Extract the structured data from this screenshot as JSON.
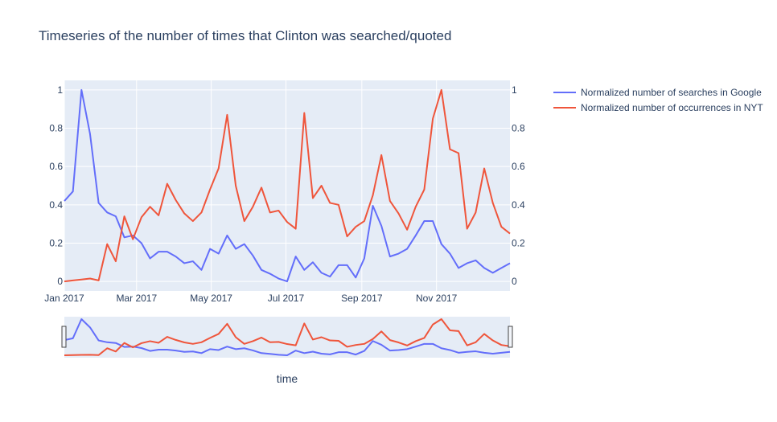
{
  "chart_data": {
    "type": "line",
    "title": "Timeseries of the number of times that Clinton was searched/quoted",
    "xlabel": "time",
    "ylabel": "",
    "x_start": "2017-01-01",
    "x_step_days": 7,
    "x_tick_labels": [
      {
        "date": "2017-01-01",
        "label": "Jan 2017"
      },
      {
        "date": "2017-03-01",
        "label": "Mar 2017"
      },
      {
        "date": "2017-05-01",
        "label": "May 2017"
      },
      {
        "date": "2017-07-01",
        "label": "Jul 2017"
      },
      {
        "date": "2017-09-01",
        "label": "Sep 2017"
      },
      {
        "date": "2017-11-01",
        "label": "Nov 2017"
      }
    ],
    "xlim": [
      "2017-01-01",
      "2017-12-31"
    ],
    "ylim": [
      -0.05,
      1.05
    ],
    "y_ticks": [
      {
        "value": 0,
        "label": "0"
      },
      {
        "value": 0.2,
        "label": "0.2"
      },
      {
        "value": 0.4,
        "label": "0.4"
      },
      {
        "value": 0.6,
        "label": "0.6"
      },
      {
        "value": 0.8,
        "label": "0.8"
      },
      {
        "value": 1,
        "label": "1"
      }
    ],
    "grid": true,
    "legend_position": "top-right",
    "has_range_slider": true,
    "colors": {
      "background": "#E5ECF6",
      "grid": "#FFFFFF",
      "text": "#2A3F5F",
      "google": "#636EFA",
      "nyt": "#EF553B"
    },
    "series": [
      {
        "name": "Normalized number of searches in Google",
        "color": "#636EFA",
        "values": [
          0.42,
          0.47,
          1.0,
          0.77,
          0.41,
          0.36,
          0.34,
          0.23,
          0.24,
          0.2,
          0.12,
          0.155,
          0.155,
          0.13,
          0.095,
          0.105,
          0.06,
          0.17,
          0.145,
          0.24,
          0.17,
          0.195,
          0.135,
          0.06,
          0.04,
          0.015,
          0.0,
          0.13,
          0.06,
          0.1,
          0.045,
          0.025,
          0.085,
          0.085,
          0.02,
          0.12,
          0.395,
          0.29,
          0.13,
          0.145,
          0.17,
          0.24,
          0.315,
          0.315,
          0.195,
          0.145,
          0.07,
          0.095,
          0.11,
          0.07,
          0.045,
          0.07,
          0.095
        ]
      },
      {
        "name": "Normalized number of occurrences in NYT",
        "color": "#EF553B",
        "values": [
          0.0,
          0.005,
          0.01,
          0.015,
          0.005,
          0.195,
          0.105,
          0.34,
          0.22,
          0.335,
          0.39,
          0.345,
          0.51,
          0.425,
          0.355,
          0.315,
          0.36,
          0.48,
          0.59,
          0.87,
          0.5,
          0.315,
          0.39,
          0.49,
          0.36,
          0.37,
          0.31,
          0.275,
          0.88,
          0.435,
          0.5,
          0.41,
          0.4,
          0.235,
          0.285,
          0.315,
          0.45,
          0.66,
          0.42,
          0.355,
          0.27,
          0.39,
          0.48,
          0.85,
          1.0,
          0.69,
          0.67,
          0.275,
          0.36,
          0.59,
          0.41,
          0.285,
          0.25
        ]
      }
    ]
  }
}
